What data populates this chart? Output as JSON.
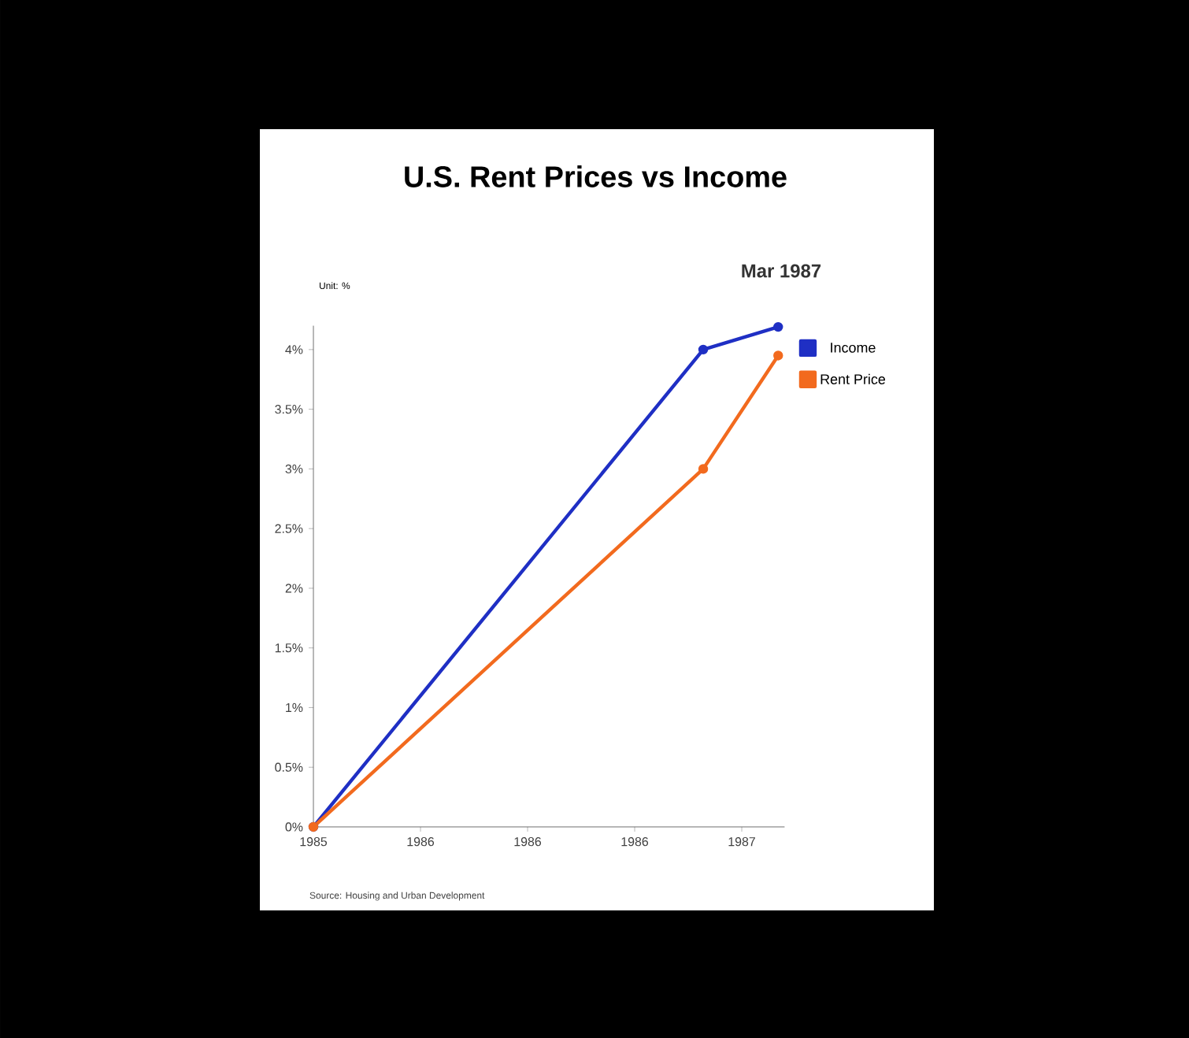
{
  "chart_data": {
    "type": "line",
    "title": "U.S. Rent Prices vs Income",
    "subtitle": "Mar 1987",
    "ylabel": "Unit: %",
    "annotations": [
      "Source: Housing and Urban Development"
    ],
    "series": [
      {
        "name": "Income",
        "color": "#1f2fc4",
        "x": [
          1985,
          1986.82,
          1987.17
        ],
        "values": [
          0,
          4.0,
          4.19
        ]
      },
      {
        "name": "Rent Price",
        "color": "#f26a1e",
        "x": [
          1985,
          1986.82,
          1987.17
        ],
        "values": [
          0,
          3.0,
          3.95
        ]
      }
    ],
    "xlim": [
      1985,
      1987.2
    ],
    "ylim": [
      0,
      4.2
    ],
    "xticks": [
      1985,
      {
        "value": 1985.5,
        "label": "1986"
      },
      1986,
      {
        "value": 1986.5,
        "label": "1986"
      },
      1987
    ],
    "yticks": [
      {
        "value": 0,
        "label": "0%"
      },
      {
        "value": 0.5,
        "label": "0.5%"
      },
      {
        "value": 1,
        "label": "1%"
      },
      {
        "value": 1.5,
        "label": "1.5%"
      },
      {
        "value": 2,
        "label": "2%"
      },
      {
        "value": 2.5,
        "label": "2.5%"
      },
      {
        "value": 3,
        "label": "3%"
      },
      {
        "value": 3.5,
        "label": "3.5%"
      },
      {
        "value": 4,
        "label": "4%"
      }
    ],
    "legend": "top right",
    "marker": "circle",
    "line_style": "solid",
    "grid": false
  }
}
